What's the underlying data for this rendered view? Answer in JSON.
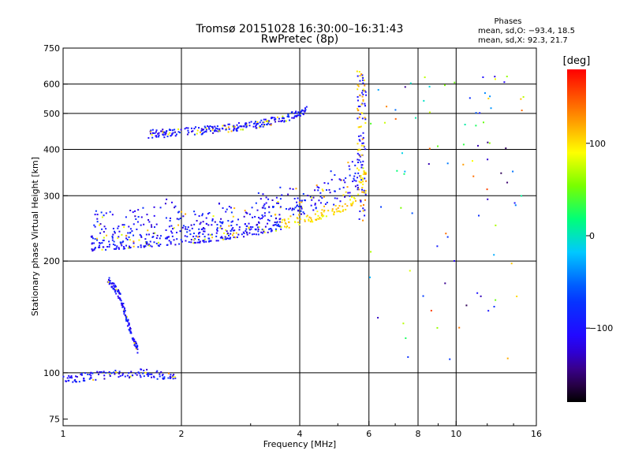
{
  "chart_data": {
    "type": "scatter",
    "title": "Tromsø 20151028 16:30:00–16:31:43",
    "subtitle": "RwPretec (8p)",
    "stats": {
      "heading": "Phases",
      "line1": "mean, sd,O: −93.4, 18.5",
      "line2": "mean, sd,X:  92.3, 21.7"
    },
    "xlabel": "Frequency [MHz]",
    "ylabel": "Stationary phase Virtual Height [km]",
    "xscale": "log",
    "yscale": "log",
    "xlim": [
      1,
      16
    ],
    "ylim": [
      72,
      750
    ],
    "xticks": [
      1,
      2,
      4,
      6,
      8,
      10,
      16
    ],
    "xtick_labels": [
      "1",
      "2",
      "4",
      "6",
      "8",
      "10",
      "16"
    ],
    "yticks": [
      75,
      100,
      200,
      300,
      400,
      500,
      600,
      750
    ],
    "ytick_labels": [
      "75",
      "100",
      "200",
      "300",
      "400",
      "500",
      "600",
      "750"
    ],
    "grid": true,
    "colorbar": {
      "label": "[deg]",
      "range": [
        -180,
        180
      ],
      "ticks": [
        100,
        0,
        -100
      ],
      "tick_labels": [
        "100",
        "0",
        "−100"
      ],
      "colormap": "rainbow"
    },
    "traces": [
      {
        "name_hint": "F2 lower trace",
        "x": [
          1.18,
          1.3,
          1.45,
          1.6,
          1.8,
          2.0,
          2.2,
          2.5,
          2.8,
          3.1,
          3.4,
          3.7,
          4.0,
          4.3,
          4.6,
          4.9,
          5.2,
          5.5,
          5.7,
          5.8,
          5.85
        ],
        "y": [
          213,
          214,
          216,
          218,
          220,
          222,
          224,
          227,
          231,
          235,
          240,
          245,
          250,
          255,
          260,
          266,
          274,
          285,
          300,
          320,
          350
        ]
      },
      {
        "name_hint": "E/F lower trace",
        "x": [
          1.0,
          1.05,
          1.1,
          1.2,
          1.3,
          1.4,
          1.5,
          1.6,
          1.8,
          1.95
        ],
        "y": [
          96,
          96,
          97,
          98,
          99,
          100,
          99,
          100,
          98,
          97
        ]
      },
      {
        "name_hint": "upper echo trace",
        "x": [
          1.65,
          1.8,
          2.0,
          2.2,
          2.4,
          2.7,
          3.0,
          3.3,
          3.6,
          3.9,
          4.2
        ],
        "y": [
          440,
          442,
          445,
          449,
          452,
          458,
          465,
          473,
          483,
          495,
          510
        ]
      },
      {
        "name_hint": "rising trace",
        "x": [
          1.3,
          1.4,
          1.45,
          1.5,
          1.55
        ],
        "y": [
          180,
          160,
          140,
          125,
          115
        ]
      }
    ]
  }
}
